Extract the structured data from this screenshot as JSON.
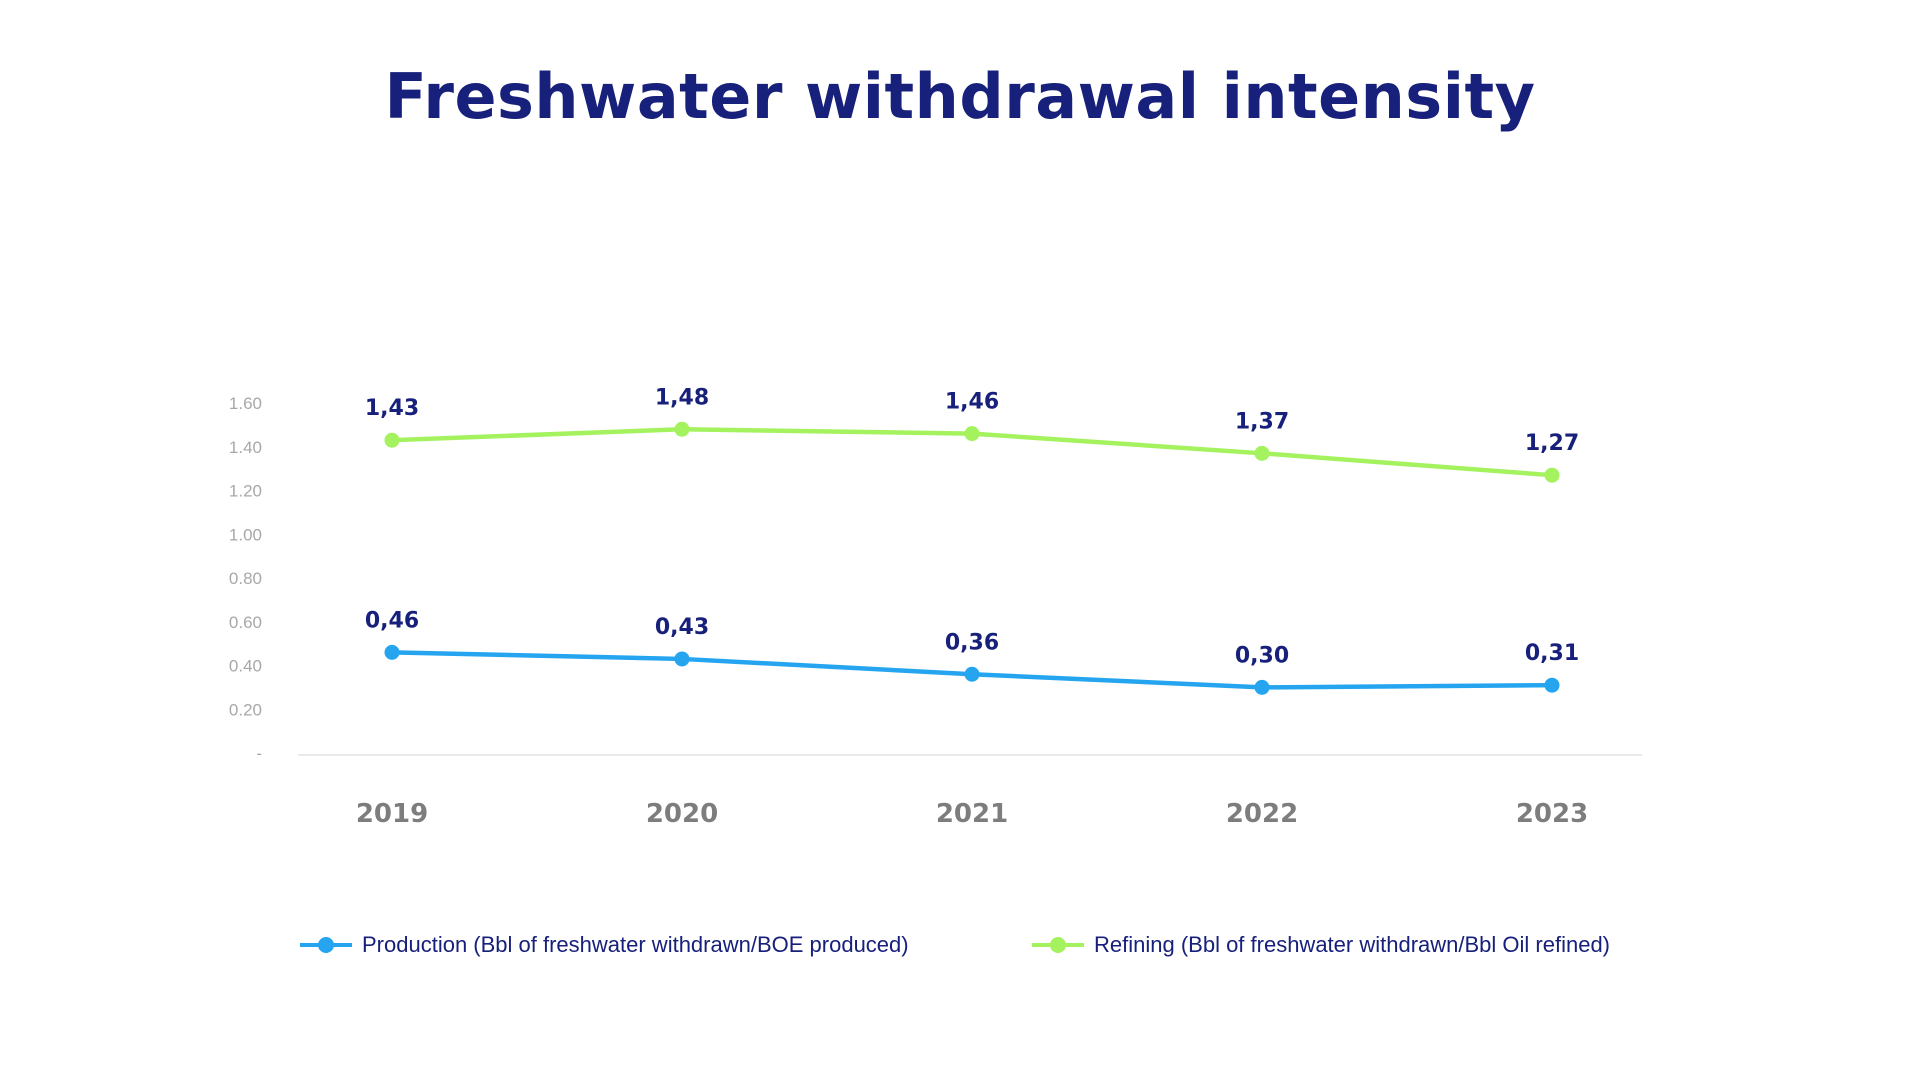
{
  "title": "Freshwater withdrawal intensity",
  "colors": {
    "title": "#17207a",
    "production": "#25a5f0",
    "refining": "#a3f25e",
    "data_label": "#17207a",
    "x_tick": "#7d7d7d",
    "y_tick": "#a8a8a8",
    "axis": "#e3e3e3"
  },
  "chart_data": {
    "type": "line",
    "title": "Freshwater withdrawal intensity",
    "xlabel": "",
    "ylabel": "",
    "categories": [
      "2019",
      "2020",
      "2021",
      "2022",
      "2023"
    ],
    "ylim": [
      0,
      1.6
    ],
    "y_ticks": [
      {
        "value": 0,
        "label": "-"
      },
      {
        "value": 0.2,
        "label": "0.20"
      },
      {
        "value": 0.4,
        "label": "0.40"
      },
      {
        "value": 0.6,
        "label": "0.60"
      },
      {
        "value": 0.8,
        "label": "0.80"
      },
      {
        "value": 1.0,
        "label": "1.00"
      },
      {
        "value": 1.2,
        "label": "1.20"
      },
      {
        "value": 1.4,
        "label": "1.40"
      },
      {
        "value": 1.6,
        "label": "1.60"
      }
    ],
    "grid": false,
    "legend_position": "bottom",
    "series": [
      {
        "name": "Production (Bbl of freshwater withdrawn/BOE produced)",
        "key": "production",
        "values": [
          0.46,
          0.43,
          0.36,
          0.3,
          0.31
        ],
        "labels": [
          "0,46",
          "0,43",
          "0,36",
          "0,30",
          "0,31"
        ]
      },
      {
        "name": "Refining (Bbl of freshwater withdrawn/Bbl Oil refined)",
        "key": "refining",
        "values": [
          1.43,
          1.48,
          1.46,
          1.37,
          1.27
        ],
        "labels": [
          "1,43",
          "1,48",
          "1,46",
          "1,37",
          "1,27"
        ]
      }
    ]
  }
}
